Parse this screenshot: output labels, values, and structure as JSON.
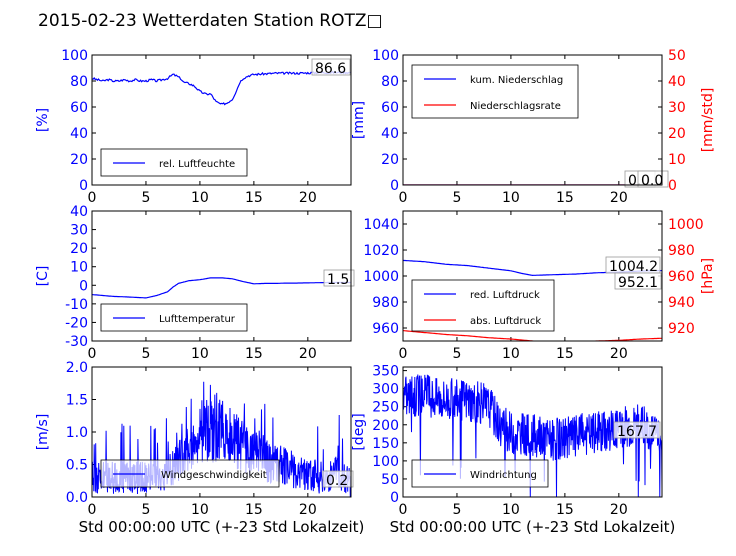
{
  "title": "2015-02-23 Wetterdaten Station ROTZ□",
  "colors": {
    "blue": "#0000ff",
    "red": "#ff0000",
    "black": "#000000",
    "legend_border": "#000000"
  },
  "chart_data": [
    {
      "id": "humidity",
      "type": "line",
      "ylabel": "[%]",
      "xlim": [
        0,
        24
      ],
      "ylim": [
        0,
        100
      ],
      "xticks": [
        0,
        5,
        10,
        15,
        20
      ],
      "yticks": [
        0,
        20,
        40,
        60,
        80,
        100
      ],
      "value_label": "86.6",
      "legend_position": "lower-left",
      "series": [
        {
          "name": "rel. Luftfeuchte",
          "color": "#0000ff",
          "x": [
            0,
            0.5,
            1,
            1.5,
            2,
            2.5,
            3,
            3.5,
            4,
            4.5,
            5,
            5.5,
            6,
            6.5,
            7,
            7.5,
            7.8,
            8.2,
            8.5,
            9,
            9.5,
            10,
            10.5,
            11,
            11.5,
            12,
            12.5,
            13,
            13.3,
            13.7,
            14,
            14.5,
            15,
            16,
            17,
            18,
            19,
            20,
            21,
            22,
            23,
            24
          ],
          "y": [
            82,
            81,
            80,
            81,
            80,
            80,
            81,
            80,
            81,
            80,
            80,
            81,
            80,
            81,
            82,
            85,
            84,
            82,
            79,
            78,
            76,
            72,
            70,
            70,
            64,
            62,
            63,
            66,
            71,
            79,
            82,
            84,
            85,
            85.5,
            86,
            86,
            86,
            86.2,
            86.4,
            86.5,
            86.6,
            86.6
          ]
        }
      ]
    },
    {
      "id": "precipitation",
      "type": "line",
      "ylabel": "[mm]",
      "ylabel_right": "[mm/std]",
      "xlim": [
        0,
        24
      ],
      "ylim": [
        0,
        100
      ],
      "ylim_right": [
        0,
        50
      ],
      "xticks": [
        0,
        5,
        10,
        15,
        20
      ],
      "yticks": [
        0,
        20,
        40,
        60,
        80,
        100
      ],
      "yticks_right": [
        0,
        10,
        20,
        30,
        40,
        50
      ],
      "value_label": "0.0",
      "value_label_2": "0.0",
      "legend_position": "upper-left",
      "series": [
        {
          "name": "kum. Niederschlag",
          "color": "#0000ff",
          "x": [
            0,
            24
          ],
          "y": [
            0,
            0
          ]
        },
        {
          "name": "Niederschlagsrate",
          "color": "#ff0000",
          "x": [
            0,
            24
          ],
          "y": [
            0,
            0
          ]
        }
      ]
    },
    {
      "id": "temperature",
      "type": "line",
      "ylabel": "[C]",
      "xlim": [
        0,
        24
      ],
      "ylim": [
        -30,
        40
      ],
      "xticks": [
        0,
        5,
        10,
        15,
        20
      ],
      "yticks": [
        -30,
        -20,
        -10,
        0,
        10,
        20,
        30,
        40
      ],
      "value_label": "1.5",
      "legend_position": "lower-left",
      "series": [
        {
          "name": "Lufttemperatur",
          "color": "#0000ff",
          "x": [
            0,
            1,
            2,
            3,
            4,
            5,
            6,
            7,
            7.5,
            8,
            9,
            10,
            11,
            12,
            13,
            14,
            15,
            16,
            17,
            18,
            19,
            20,
            21,
            22,
            23,
            24
          ],
          "y": [
            -5,
            -5.5,
            -6,
            -6.2,
            -6.5,
            -6.8,
            -5.5,
            -3.5,
            -1,
            1,
            2.5,
            3,
            4,
            4,
            3.5,
            2,
            0.8,
            1,
            1,
            1.2,
            1.2,
            1.3,
            1.4,
            1.5,
            1.5,
            1.5
          ]
        }
      ]
    },
    {
      "id": "pressure",
      "type": "line",
      "ylabel_right": "[hPa]",
      "xlim": [
        0,
        24
      ],
      "ylim": [
        950,
        1050
      ],
      "ylim_right": [
        910,
        1010
      ],
      "xticks": [
        0,
        5,
        10,
        15,
        20
      ],
      "yticks": [
        960,
        980,
        1000,
        1020,
        1040
      ],
      "yticks_right": [
        920,
        940,
        960,
        980,
        1000
      ],
      "value_label": "1004.2",
      "value_label_2": "952.1",
      "legend_position": "lower-left",
      "series": [
        {
          "name": "red. Luftdruck",
          "color": "#0000ff",
          "x": [
            0,
            2,
            4,
            6,
            8,
            10,
            11,
            12,
            14,
            16,
            18,
            20,
            22,
            24
          ],
          "y": [
            1012,
            1011,
            1009,
            1008,
            1006,
            1004,
            1002,
            1000.5,
            1001,
            1001.5,
            1002.5,
            1003,
            1003.8,
            1004.2
          ]
        },
        {
          "name": "abs. Luftdruck",
          "color": "#ff0000",
          "x": [
            0,
            2,
            4,
            6,
            8,
            10,
            12,
            13,
            14,
            16,
            18,
            20,
            22,
            24
          ],
          "y": [
            958,
            956.5,
            955,
            954,
            952.5,
            951.5,
            950,
            949.5,
            949.5,
            949.5,
            950,
            950.5,
            951.5,
            952.1
          ]
        }
      ]
    },
    {
      "id": "wind_speed",
      "type": "line",
      "ylabel": "[m/s]",
      "xlabel": "Std 00:00:00 UTC (+-23 Std Lokalzeit)",
      "xlim": [
        0,
        24
      ],
      "ylim": [
        0,
        2.0
      ],
      "xticks": [
        0,
        5,
        10,
        15,
        20
      ],
      "yticks": [
        "0.0",
        "0.5",
        "1.0",
        "1.5",
        "2.0"
      ],
      "value_label": "0.2",
      "legend_position": "lower-center",
      "series": [
        {
          "name": "Windgeschwindigkeit",
          "color": "#0000ff",
          "noisy": true,
          "x": [
            0,
            2,
            4,
            6,
            7,
            8,
            9,
            10,
            11,
            12,
            13,
            14,
            15,
            16,
            17,
            18,
            19,
            20,
            21,
            22,
            23,
            24
          ],
          "y": [
            0.3,
            0.3,
            0.3,
            0.3,
            0.35,
            0.55,
            0.75,
            1.0,
            1.05,
            1.0,
            0.9,
            0.8,
            0.7,
            0.6,
            0.5,
            0.45,
            0.4,
            0.35,
            0.3,
            0.3,
            0.4,
            0.2
          ]
        }
      ]
    },
    {
      "id": "wind_direction",
      "type": "line",
      "ylabel": "[deg]",
      "xlabel": "Std 00:00:00 UTC (+-23 Std Lokalzeit)",
      "xlim": [
        0,
        24
      ],
      "ylim": [
        0,
        360
      ],
      "xticks": [
        0,
        5,
        10,
        15,
        20
      ],
      "yticks": [
        0,
        50,
        100,
        150,
        200,
        250,
        300,
        350
      ],
      "value_label": "167.7",
      "legend_position": "lower-left",
      "series": [
        {
          "name": "Windrichtung",
          "color": "#0000ff",
          "noisy": true,
          "x": [
            0,
            2,
            4,
            6,
            8,
            9,
            10,
            12,
            14,
            16,
            18,
            20,
            22,
            24
          ],
          "y": [
            280,
            280,
            270,
            270,
            250,
            200,
            180,
            170,
            160,
            170,
            180,
            190,
            200,
            168
          ]
        }
      ]
    }
  ]
}
